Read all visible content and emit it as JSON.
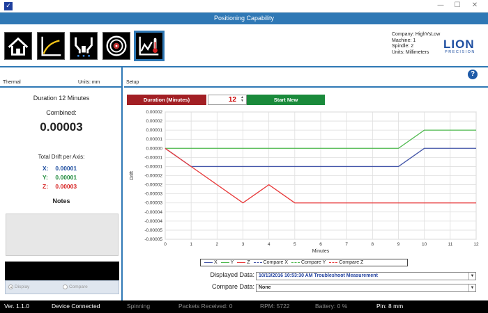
{
  "window": {
    "title": "",
    "app_icon": "checkmark-app-icon",
    "controls": [
      "minimize",
      "maximize",
      "close"
    ]
  },
  "header": {
    "title": "Positioning Capability"
  },
  "toolbar": {
    "buttons": [
      {
        "name": "home-icon"
      },
      {
        "name": "curve-chart-icon"
      },
      {
        "name": "spindle-icon"
      },
      {
        "name": "target-icon"
      },
      {
        "name": "thermal-chart-icon",
        "active": true
      }
    ]
  },
  "info": {
    "company": "Company: HighVsLow",
    "machine": "Machine: 1",
    "spindle": "Spindle: 2",
    "units": "Units: Millimeters"
  },
  "logo": {
    "main": "LION",
    "sub": "PRECISION"
  },
  "left_panel": {
    "header_left": "Thermal",
    "header_right": "Units:  mm",
    "duration_text": "Duration 12 Minutes",
    "combined_label": "Combined:",
    "combined_value": "0.00003",
    "total_drift_label": "Total Drift per Axis:",
    "axes": [
      {
        "label": "X:",
        "value": "0.00001",
        "color": "#1e4ea0"
      },
      {
        "label": "Y:",
        "value": "0.00001",
        "color": "#1e8a3a"
      },
      {
        "label": "Z:",
        "value": "0.00003",
        "color": "#d62020"
      }
    ],
    "notes_label": "Notes",
    "radio_display": "Display",
    "radio_compare": "Compare"
  },
  "right_panel": {
    "header_left": "Setup",
    "help": "?",
    "duration_button": "Duration (Minutes)",
    "duration_value": "12",
    "start_button": "Start New",
    "displayed_label": "Displayed Data:",
    "displayed_value": "10/13/2016 10:53:30 AM Troubleshoot Measurement",
    "compare_label": "Compare Data:",
    "compare_value": "None"
  },
  "chart_data": {
    "type": "line",
    "xlabel": "Minutes",
    "ylabel": "Drift",
    "xlim": [
      0,
      12
    ],
    "ylim": [
      -5e-05,
      2e-05
    ],
    "x_ticks": [
      0,
      1,
      2,
      3,
      4,
      5,
      6,
      7,
      8,
      9,
      10,
      11,
      12
    ],
    "y_ticks": [
      2e-05,
      1.5e-05,
      1e-05,
      5e-06,
      0,
      -5e-06,
      -1e-05,
      -1.5e-05,
      -2e-05,
      -2.5e-05,
      -3e-05,
      -3.5e-05,
      -4e-05,
      -4.5e-05,
      -5e-05
    ],
    "y_tick_labels": [
      "0.00002",
      "0.00002",
      "0.00001",
      "0.00001",
      "0.00000",
      "-0.00001",
      "-0.00001",
      "-0.00002",
      "-0.00002",
      "-0.00003",
      "-0.00003",
      "-0.00004",
      "-0.00004",
      "-0.00005",
      "-0.00005"
    ],
    "grid": true,
    "legend_placement": "bottom",
    "series": [
      {
        "name": "X",
        "color": "#4355a8",
        "x": [
          0,
          1,
          9,
          10,
          12
        ],
        "y": [
          0,
          -1e-05,
          -1e-05,
          0,
          0
        ]
      },
      {
        "name": "Y",
        "color": "#4cb84c",
        "x": [
          0,
          9,
          10,
          12
        ],
        "y": [
          0,
          0,
          1e-05,
          1e-05
        ]
      },
      {
        "name": "Z",
        "color": "#e8393a",
        "x": [
          0,
          3,
          4,
          5,
          12
        ],
        "y": [
          0,
          -3e-05,
          -2e-05,
          -3e-05,
          -3e-05
        ]
      }
    ],
    "legend": [
      {
        "name": "X",
        "color": "#4355a8",
        "dashed": false
      },
      {
        "name": "Y",
        "color": "#4cb84c",
        "dashed": false
      },
      {
        "name": "Z",
        "color": "#e8393a",
        "dashed": false
      },
      {
        "name": "Compare X",
        "color": "#4355a8",
        "dashed": true
      },
      {
        "name": "Compare Y",
        "color": "#4cb84c",
        "dashed": true
      },
      {
        "name": "Compare Z",
        "color": "#e8393a",
        "dashed": true
      }
    ]
  },
  "status": {
    "version": "Ver. 1.1.0",
    "connection": "Device Connected",
    "spinning": "Spinning",
    "packets": "Packets Received:  0",
    "rpm": "RPM:  5722",
    "battery": "Battery:  0  %",
    "pin": "Pin: 8 mm"
  }
}
